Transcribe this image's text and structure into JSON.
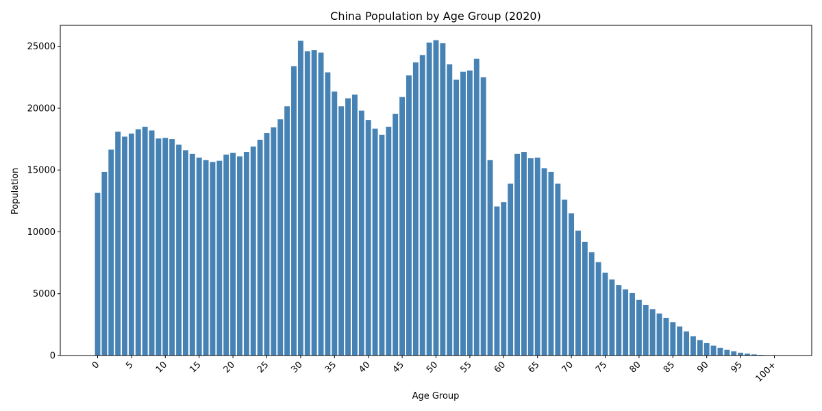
{
  "chart_data": {
    "type": "bar",
    "title": "China Population by Age Group (2020)",
    "xlabel": "Age Group",
    "ylabel": "Population",
    "ylim": [
      0,
      26700
    ],
    "yticks": [
      0,
      5000,
      10000,
      15000,
      20000,
      25000
    ],
    "xtick_labels": [
      "0",
      "5",
      "10",
      "15",
      "20",
      "25",
      "30",
      "35",
      "40",
      "45",
      "50",
      "55",
      "60",
      "65",
      "70",
      "75",
      "80",
      "85",
      "90",
      "95",
      "100+"
    ],
    "bar_color": "#4682b4",
    "grid": false,
    "categories": [
      "0",
      "1",
      "2",
      "3",
      "4",
      "5",
      "6",
      "7",
      "8",
      "9",
      "10",
      "11",
      "12",
      "13",
      "14",
      "15",
      "16",
      "17",
      "18",
      "19",
      "20",
      "21",
      "22",
      "23",
      "24",
      "25",
      "26",
      "27",
      "28",
      "29",
      "30",
      "31",
      "32",
      "33",
      "34",
      "35",
      "36",
      "37",
      "38",
      "39",
      "40",
      "41",
      "42",
      "43",
      "44",
      "45",
      "46",
      "47",
      "48",
      "49",
      "50",
      "51",
      "52",
      "53",
      "54",
      "55",
      "56",
      "57",
      "58",
      "59",
      "60",
      "61",
      "62",
      "63",
      "64",
      "65",
      "66",
      "67",
      "68",
      "69",
      "70",
      "71",
      "72",
      "73",
      "74",
      "75",
      "76",
      "77",
      "78",
      "79",
      "80",
      "81",
      "82",
      "83",
      "84",
      "85",
      "86",
      "87",
      "88",
      "89",
      "90",
      "91",
      "92",
      "93",
      "94",
      "95",
      "96",
      "97",
      "98",
      "99",
      "100+"
    ],
    "values": [
      13150,
      14850,
      16650,
      18100,
      17700,
      17950,
      18300,
      18500,
      18200,
      17550,
      17600,
      17500,
      17050,
      16600,
      16300,
      16000,
      15800,
      15650,
      15750,
      16250,
      16400,
      16100,
      16450,
      16900,
      17450,
      18000,
      18450,
      19100,
      20150,
      23400,
      25450,
      24600,
      24700,
      24500,
      22900,
      21350,
      20150,
      20800,
      21100,
      19800,
      19050,
      18350,
      17850,
      18500,
      19550,
      20900,
      22650,
      23700,
      24300,
      25300,
      25500,
      25250,
      23550,
      22300,
      22950,
      23050,
      24000,
      22500,
      15800,
      12050,
      12400,
      13900,
      16300,
      16450,
      15950,
      16000,
      15150,
      14850,
      13900,
      12600,
      11500,
      10100,
      9200,
      8350,
      7550,
      6700,
      6150,
      5700,
      5350,
      5050,
      4500,
      4100,
      3750,
      3400,
      3050,
      2700,
      2350,
      1950,
      1550,
      1250,
      1000,
      800,
      620,
      460,
      340,
      230,
      150,
      90,
      50,
      30,
      20
    ]
  }
}
